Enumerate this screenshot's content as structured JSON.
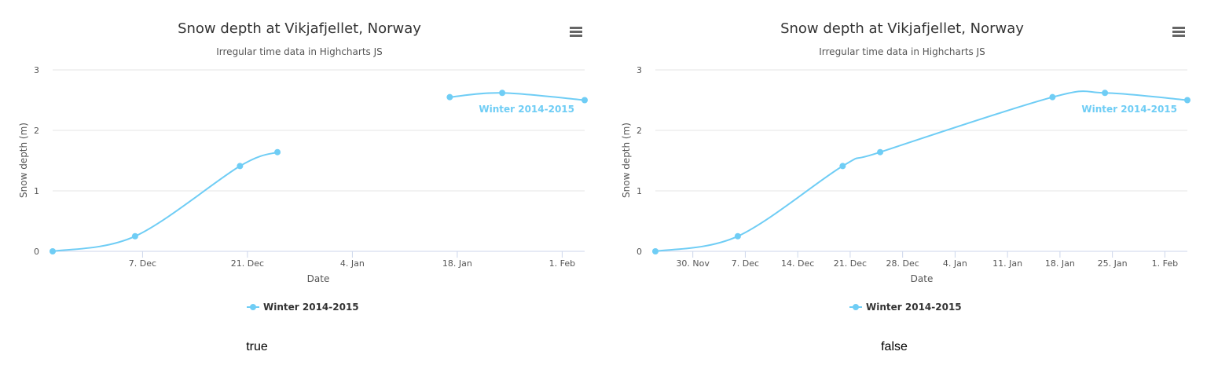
{
  "colors": {
    "series": "#6fcdf5",
    "grid": "#e6e6e6",
    "axis": "#ccd6eb",
    "text": "#333333"
  },
  "chart_data": [
    {
      "type": "line",
      "title": "Snow depth at Vikjafjellet, Norway",
      "subtitle": "Irregular time data in Highcharts JS",
      "xlabel": "Date",
      "ylabel": "Snow depth (m)",
      "ylim": [
        0,
        3
      ],
      "yticks": [
        "0",
        "1",
        "2",
        "3"
      ],
      "xticks": [
        {
          "label": "7. Dec",
          "date": "2014-12-07"
        },
        {
          "label": "21. Dec",
          "date": "2014-12-21"
        },
        {
          "label": "4. Jan",
          "date": "2015-01-04"
        },
        {
          "label": "18. Jan",
          "date": "2015-01-18"
        },
        {
          "label": "1. Feb",
          "date": "2015-02-01"
        }
      ],
      "xlim": [
        "2014-11-25",
        "2015-02-04"
      ],
      "grid": true,
      "legend": "bottom-center",
      "series": [
        {
          "name": "Winter 2014-2015",
          "segments": [
            [
              {
                "date": "2014-11-25",
                "y": 0
              },
              {
                "date": "2014-12-06",
                "y": 0.25
              },
              {
                "date": "2014-12-20",
                "y": 1.41
              },
              {
                "date": "2014-12-25",
                "y": 1.64
              }
            ],
            [
              {
                "date": "2015-01-17",
                "y": 2.55
              },
              {
                "date": "2015-01-24",
                "y": 2.62
              },
              {
                "date": "2015-02-04",
                "y": 2.5
              }
            ]
          ]
        }
      ],
      "caption": "true"
    },
    {
      "type": "line",
      "title": "Snow depth at Vikjafjellet, Norway",
      "subtitle": "Irregular time data in Highcharts JS",
      "xlabel": "Date",
      "ylabel": "Snow depth (m)",
      "ylim": [
        0,
        3
      ],
      "yticks": [
        "0",
        "1",
        "2",
        "3"
      ],
      "xticks": [
        {
          "label": "30. Nov",
          "date": "2014-11-30"
        },
        {
          "label": "7. Dec",
          "date": "2014-12-07"
        },
        {
          "label": "14. Dec",
          "date": "2014-12-14"
        },
        {
          "label": "21. Dec",
          "date": "2014-12-21"
        },
        {
          "label": "28. Dec",
          "date": "2014-12-28"
        },
        {
          "label": "4. Jan",
          "date": "2015-01-04"
        },
        {
          "label": "11. Jan",
          "date": "2015-01-11"
        },
        {
          "label": "18. Jan",
          "date": "2015-01-18"
        },
        {
          "label": "25. Jan",
          "date": "2015-01-25"
        },
        {
          "label": "1. Feb",
          "date": "2015-02-01"
        }
      ],
      "xlim": [
        "2014-11-25",
        "2015-02-04"
      ],
      "grid": true,
      "legend": "bottom-center",
      "series": [
        {
          "name": "Winter 2014-2015",
          "segments": [
            [
              {
                "date": "2014-11-25",
                "y": 0
              },
              {
                "date": "2014-12-06",
                "y": 0.25
              },
              {
                "date": "2014-12-20",
                "y": 1.41
              },
              {
                "date": "2014-12-25",
                "y": 1.64
              },
              {
                "date": "2015-01-17",
                "y": 2.55
              },
              {
                "date": "2015-01-24",
                "y": 2.62
              },
              {
                "date": "2015-02-04",
                "y": 2.5
              }
            ]
          ]
        }
      ],
      "caption": "false"
    }
  ]
}
